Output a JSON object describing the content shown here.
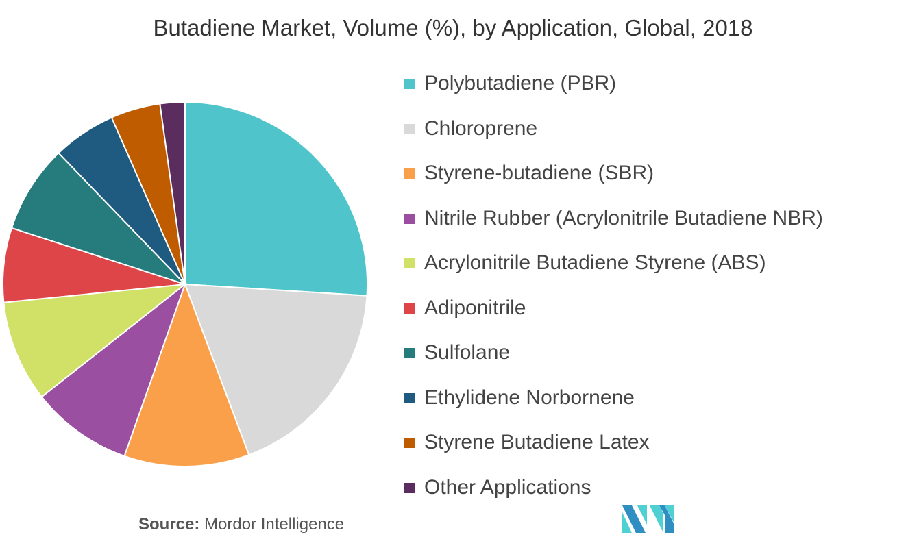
{
  "chart_data": {
    "type": "pie",
    "title": "Butadiene Market, Volume (%), by Application, Global, 2018",
    "legend_position": "right",
    "slices": [
      {
        "label": "Polybutadiene (PBR)",
        "value": 26.0,
        "color": "#4fc4ca"
      },
      {
        "label": "Chloroprene",
        "value": 18.3,
        "color": "#d9d9d9"
      },
      {
        "label": "Styrene-butadiene (SBR)",
        "value": 11.1,
        "color": "#fba04a"
      },
      {
        "label": "Nitrile Rubber (Acrylonitrile Butadiene NBR)",
        "value": 9.0,
        "color": "#9b4fa0"
      },
      {
        "label": "Acrylonitrile Butadiene Styrene (ABS)",
        "value": 9.0,
        "color": "#d1e067"
      },
      {
        "label": "Adiponitrile",
        "value": 6.6,
        "color": "#dd4548"
      },
      {
        "label": "Sulfolane",
        "value": 7.8,
        "color": "#267b7c"
      },
      {
        "label": "Ethylidene Norbornene",
        "value": 5.6,
        "color": "#1f5b80"
      },
      {
        "label": "Styrene Butadiene Latex",
        "value": 4.4,
        "color": "#c05c00"
      },
      {
        "label": "Other Applications",
        "value": 2.2,
        "color": "#5a2d5e"
      }
    ]
  },
  "source": {
    "label": "Source:",
    "value": "Mordor Intelligence"
  },
  "logo": {
    "text": "MI",
    "colors": [
      "#2f8fc2",
      "#4fd1d4"
    ]
  }
}
